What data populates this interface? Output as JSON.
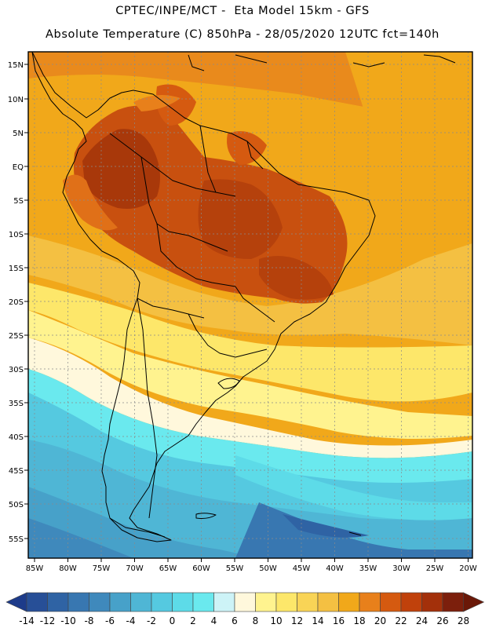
{
  "header": {
    "line1": "CPTEC/INPE/MCT -  Eta Model 15km - GFS",
    "line2": "Absolute Temperature (C) 850hPa - 28/05/2020 12UTC fct=140h"
  },
  "map": {
    "lon_labels": [
      "85W",
      "80W",
      "75W",
      "70W",
      "65W",
      "60W",
      "55W",
      "50W",
      "45W",
      "40W",
      "35W",
      "30W",
      "25W",
      "20W"
    ],
    "lat_labels": [
      "15N",
      "10N",
      "5N",
      "EQ",
      "5S",
      "10S",
      "15S",
      "20S",
      "25S",
      "30S",
      "35S",
      "40S",
      "45S",
      "50S",
      "55S"
    ],
    "lon_range": [
      -86,
      -19.5
    ],
    "lat_range": [
      17,
      -57.5
    ],
    "gridlines": true
  },
  "colorbar": {
    "labels": [
      "-14",
      "-12",
      "-10",
      "-8",
      "-6",
      "-4",
      "-2",
      "0",
      "2",
      "4",
      "6",
      "8",
      "10",
      "12",
      "14",
      "16",
      "18",
      "20",
      "22",
      "24",
      "26",
      "28"
    ],
    "colors": [
      "#1d3b8a",
      "#274f97",
      "#2f63a4",
      "#3877b1",
      "#3f89bc",
      "#47a1c9",
      "#4fb6d5",
      "#55c9e0",
      "#5ddbe8",
      "#6ae9ee",
      "#cdf3f7",
      "#fff8dc",
      "#fff38f",
      "#fde76a",
      "#f9d456",
      "#f4c042",
      "#f1a81a",
      "#e8801b",
      "#d55a10",
      "#c0410b",
      "#a3300a",
      "#7c1f0c",
      "#6a1808"
    ]
  }
}
